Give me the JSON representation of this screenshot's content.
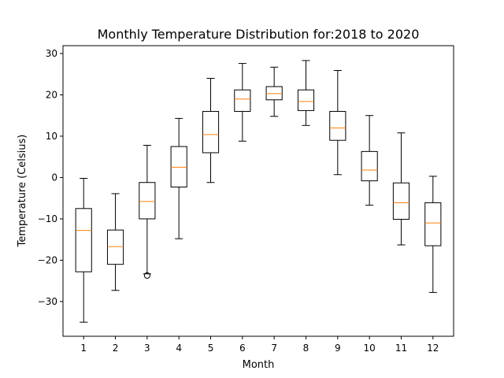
{
  "chart_data": {
    "type": "box",
    "title": "Monthly Temperature Distribution for:2018 to 2020",
    "xlabel": "Month",
    "ylabel": "Temperature (Celsius)",
    "ylim": [
      -38.4,
      31.9
    ],
    "yticks": [
      -30,
      -20,
      -10,
      0,
      10,
      20,
      30
    ],
    "grid": false,
    "colors": {
      "box": "#000000",
      "median": "#ff7f0e",
      "whisker": "#000000",
      "flier": "#000000"
    },
    "categories": [
      "1",
      "2",
      "3",
      "4",
      "5",
      "6",
      "7",
      "8",
      "9",
      "10",
      "11",
      "12"
    ],
    "boxes": [
      {
        "category": "1",
        "whisker_low": -35.0,
        "q1": -22.8,
        "median": -12.8,
        "q3": -7.5,
        "whisker_high": -0.2,
        "fliers": []
      },
      {
        "category": "2",
        "whisker_low": -27.3,
        "q1": -21.0,
        "median": -16.7,
        "q3": -12.7,
        "whisker_high": -3.9,
        "fliers": []
      },
      {
        "category": "3",
        "whisker_low": -23.3,
        "q1": -10.0,
        "median": -5.8,
        "q3": -1.2,
        "whisker_high": 7.8,
        "fliers": [
          -23.7
        ]
      },
      {
        "category": "4",
        "whisker_low": -14.8,
        "q1": -2.3,
        "median": 2.5,
        "q3": 7.5,
        "whisker_high": 14.3,
        "fliers": []
      },
      {
        "category": "5",
        "whisker_low": -1.2,
        "q1": 6.0,
        "median": 10.4,
        "q3": 16.0,
        "whisker_high": 24.0,
        "fliers": []
      },
      {
        "category": "6",
        "whisker_low": 8.8,
        "q1": 16.0,
        "median": 19.0,
        "q3": 21.2,
        "whisker_high": 27.6,
        "fliers": []
      },
      {
        "category": "7",
        "whisker_low": 14.8,
        "q1": 18.8,
        "median": 20.3,
        "q3": 22.0,
        "whisker_high": 26.7,
        "fliers": []
      },
      {
        "category": "8",
        "whisker_low": 12.6,
        "q1": 16.2,
        "median": 18.4,
        "q3": 21.2,
        "whisker_high": 28.3,
        "fliers": []
      },
      {
        "category": "9",
        "whisker_low": 0.7,
        "q1": 9.0,
        "median": 12.0,
        "q3": 16.0,
        "whisker_high": 25.9,
        "fliers": []
      },
      {
        "category": "10",
        "whisker_low": -6.7,
        "q1": -0.8,
        "median": 1.8,
        "q3": 6.3,
        "whisker_high": 15.0,
        "fliers": []
      },
      {
        "category": "11",
        "whisker_low": -16.3,
        "q1": -10.1,
        "median": -6.1,
        "q3": -1.3,
        "whisker_high": 10.8,
        "fliers": []
      },
      {
        "category": "12",
        "whisker_low": -27.8,
        "q1": -16.5,
        "median": -11.0,
        "q3": -6.1,
        "whisker_high": 0.3,
        "fliers": []
      }
    ]
  }
}
